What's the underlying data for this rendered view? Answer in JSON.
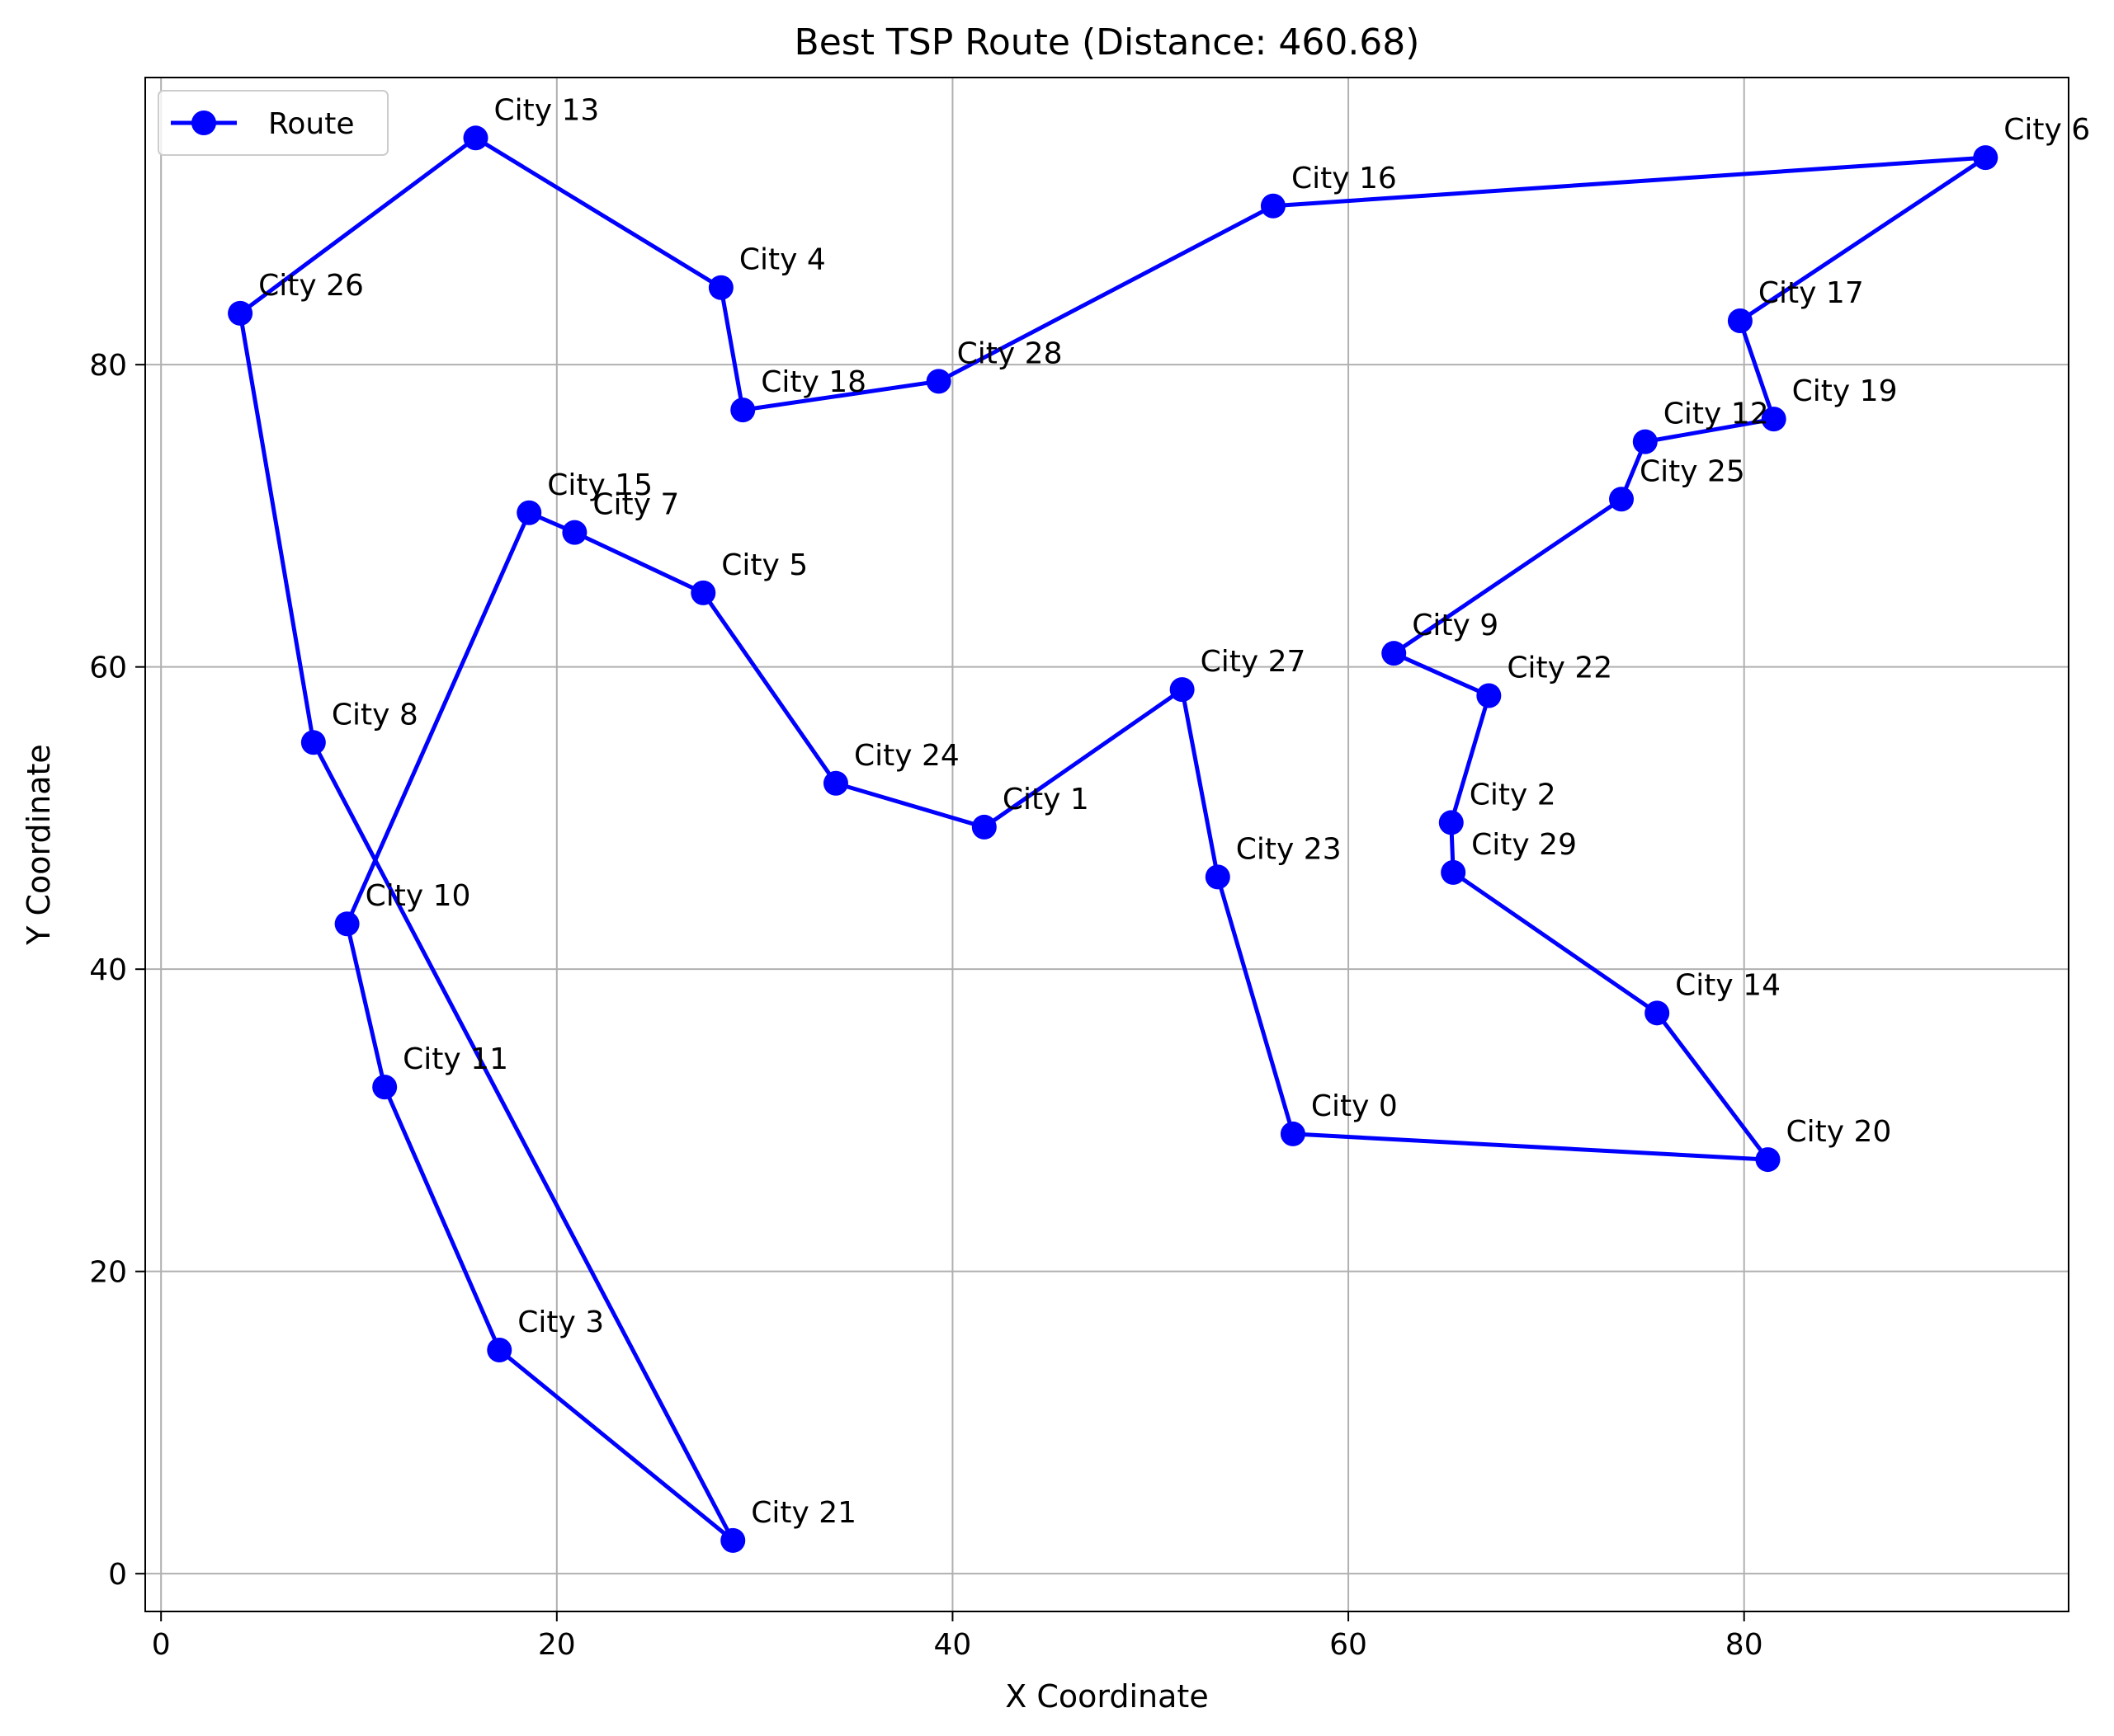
{
  "chart_data": {
    "type": "line",
    "title": "Best TSP Route (Distance: 460.68)",
    "xlabel": "X Coordinate",
    "ylabel": "Y Coordinate",
    "xlim": [
      -0.8,
      96.4
    ],
    "ylim": [
      -2.5,
      99
    ],
    "xticks": [
      0,
      20,
      40,
      60,
      80
    ],
    "yticks": [
      0,
      20,
      40,
      60,
      80
    ],
    "grid": true,
    "legend": {
      "position": "top-left",
      "entries": [
        "Route"
      ]
    },
    "series": [
      {
        "name": "Route",
        "color": "#0000ff",
        "marker": "circle",
        "points": [
          {
            "label": "City 13",
            "x": 15.9,
            "y": 95.0
          },
          {
            "label": "City 4",
            "x": 28.3,
            "y": 85.1
          },
          {
            "label": "City 18",
            "x": 29.4,
            "y": 77.0
          },
          {
            "label": "City 28",
            "x": 39.3,
            "y": 78.9
          },
          {
            "label": "City 16",
            "x": 56.2,
            "y": 90.5
          },
          {
            "label": "City 6",
            "x": 92.2,
            "y": 93.7
          },
          {
            "label": "City 17",
            "x": 79.8,
            "y": 82.9
          },
          {
            "label": "City 19",
            "x": 81.5,
            "y": 76.4
          },
          {
            "label": "City 12",
            "x": 75.0,
            "y": 74.9
          },
          {
            "label": "City 25",
            "x": 73.8,
            "y": 71.1
          },
          {
            "label": "City 9",
            "x": 62.3,
            "y": 60.9
          },
          {
            "label": "City 22",
            "x": 67.1,
            "y": 58.1
          },
          {
            "label": "City 2",
            "x": 65.2,
            "y": 49.7
          },
          {
            "label": "City 29",
            "x": 65.3,
            "y": 46.4
          },
          {
            "label": "City 14",
            "x": 75.6,
            "y": 37.1
          },
          {
            "label": "City 20",
            "x": 81.2,
            "y": 27.4
          },
          {
            "label": "City 0",
            "x": 57.2,
            "y": 29.1
          },
          {
            "label": "City 23",
            "x": 53.4,
            "y": 46.1
          },
          {
            "label": "City 27",
            "x": 51.6,
            "y": 58.5
          },
          {
            "label": "City 1",
            "x": 41.6,
            "y": 49.4
          },
          {
            "label": "City 24",
            "x": 34.1,
            "y": 52.3
          },
          {
            "label": "City 5",
            "x": 27.4,
            "y": 64.9
          },
          {
            "label": "City 7",
            "x": 20.9,
            "y": 68.9
          },
          {
            "label": "City 15",
            "x": 18.6,
            "y": 70.2
          },
          {
            "label": "City 10",
            "x": 9.4,
            "y": 43.0
          },
          {
            "label": "City 11",
            "x": 11.3,
            "y": 32.2
          },
          {
            "label": "City 3",
            "x": 17.1,
            "y": 14.8
          },
          {
            "label": "City 21",
            "x": 28.9,
            "y": 2.2
          },
          {
            "label": "City 8",
            "x": 7.7,
            "y": 55.0
          },
          {
            "label": "City 26",
            "x": 4.0,
            "y": 83.4
          },
          {
            "label": "City 13",
            "x": 15.9,
            "y": 95.0
          }
        ]
      }
    ]
  }
}
